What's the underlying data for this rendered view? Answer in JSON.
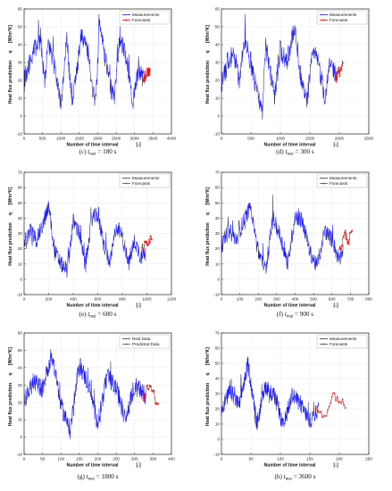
{
  "colors": {
    "measurements": "#1a1aff",
    "forecasts": "#ee1111",
    "frame": "#000000",
    "grid": "#e6e6e6"
  },
  "chart_data": [
    {
      "type": "line",
      "caption": "(c) t_mai = 180 s",
      "caption_parts": {
        "letter": "(c)",
        "sub": "mai",
        "value": "= 180 s"
      },
      "xlabel": "Number of time interval",
      "xunit": "[-]",
      "ylabel": "Heat flux prediction",
      "ysymbol": "q",
      "yunit": "[W/m²K]",
      "xlim": [
        0,
        4000
      ],
      "xticks": [
        "0",
        "500",
        "1000",
        "1500",
        "2000",
        "2500",
        "3000",
        "3500",
        "4000"
      ],
      "ylim": [
        -10,
        60
      ],
      "yticks": [
        "-10",
        "0",
        "10",
        "20",
        "30",
        "40",
        "50",
        "60"
      ],
      "legend": [
        "Measurements",
        "Forecasts"
      ],
      "legend_position": "top-right",
      "meas_end": 3270,
      "fc_start": 3220,
      "fc_end": 3420,
      "series": [
        {
          "name": "Measurements",
          "points": [
            [
              0,
              20
            ],
            [
              150,
              30
            ],
            [
              300,
              38
            ],
            [
              450,
              45
            ],
            [
              550,
              18
            ],
            [
              650,
              42
            ],
            [
              800,
              30
            ],
            [
              950,
              12
            ],
            [
              1000,
              5
            ],
            [
              1150,
              45
            ],
            [
              1300,
              8
            ],
            [
              1350,
              12
            ],
            [
              1550,
              45
            ],
            [
              1750,
              35
            ],
            [
              1850,
              15
            ],
            [
              1950,
              12
            ],
            [
              2050,
              52
            ],
            [
              2150,
              38
            ],
            [
              2350,
              15
            ],
            [
              2450,
              10
            ],
            [
              2600,
              45
            ],
            [
              2800,
              30
            ],
            [
              2950,
              8
            ],
            [
              3100,
              25
            ],
            [
              3270,
              20
            ]
          ]
        },
        {
          "name": "Forecasts",
          "points": [
            [
              3220,
              20
            ],
            [
              3320,
              24
            ],
            [
              3420,
              26
            ]
          ]
        }
      ]
    },
    {
      "type": "line",
      "caption": "(d) t_mai = 300 s",
      "caption_parts": {
        "letter": "(d)",
        "sub": "mai",
        "value": "= 300 s"
      },
      "xlabel": "Number of time interval",
      "xunit": "[-]",
      "ylabel": "Heat flux prediction",
      "ysymbol": "q",
      "yunit": "[W/m²K]",
      "xlim": [
        0,
        2500
      ],
      "xticks": [
        "0",
        "500",
        "1000",
        "1500",
        "2000",
        "2500"
      ],
      "ylim": [
        -10,
        60
      ],
      "yticks": [
        "-10",
        "0",
        "10",
        "20",
        "30",
        "40",
        "50",
        "60"
      ],
      "legend": [
        "Measurements",
        "Forecasts"
      ],
      "legend_position": "top-right",
      "meas_end": 1960,
      "fc_start": 1930,
      "fc_end": 2060,
      "series": [
        {
          "name": "Measurements",
          "points": [
            [
              0,
              18
            ],
            [
              100,
              28
            ],
            [
              200,
              36
            ],
            [
              300,
              20
            ],
            [
              400,
              45
            ],
            [
              500,
              28
            ],
            [
              650,
              8
            ],
            [
              700,
              3
            ],
            [
              750,
              40
            ],
            [
              900,
              10
            ],
            [
              1000,
              38
            ],
            [
              1100,
              30
            ],
            [
              1250,
              50
            ],
            [
              1350,
              20
            ],
            [
              1450,
              8
            ],
            [
              1550,
              35
            ],
            [
              1650,
              30
            ],
            [
              1750,
              10
            ],
            [
              1850,
              30
            ],
            [
              1960,
              22
            ]
          ]
        },
        {
          "name": "Forecasts",
          "points": [
            [
              1930,
              21
            ],
            [
              2000,
              25
            ],
            [
              2060,
              28
            ]
          ]
        }
      ]
    },
    {
      "type": "line",
      "caption": "(e) t_mai = 600 s",
      "caption_parts": {
        "letter": "(e)",
        "sub": "mai",
        "value": "= 600 s"
      },
      "xlabel": "Number of time interval",
      "xunit": "[-]",
      "ylabel": "Heat flux prediction",
      "ysymbol": "q",
      "yunit": "[W/m²K]",
      "xlim": [
        0,
        1200
      ],
      "xticks": [
        "0",
        "200",
        "400",
        "600",
        "800",
        "1000",
        "1200"
      ],
      "ylim": [
        -10,
        70
      ],
      "yticks": [
        "-10",
        "0",
        "10",
        "20",
        "30",
        "40",
        "50",
        "60",
        "70"
      ],
      "legend": [
        "Measurements",
        "Forecasts"
      ],
      "legend_position": "top-right",
      "meas_end": 990,
      "fc_start": 960,
      "fc_end": 1040,
      "series": [
        {
          "name": "Measurements",
          "points": [
            [
              0,
              22
            ],
            [
              50,
              32
            ],
            [
              100,
              26
            ],
            [
              150,
              35
            ],
            [
              200,
              48
            ],
            [
              250,
              18
            ],
            [
              300,
              10
            ],
            [
              350,
              6
            ],
            [
              400,
              38
            ],
            [
              450,
              30
            ],
            [
              500,
              8
            ],
            [
              550,
              40
            ],
            [
              600,
              42
            ],
            [
              650,
              22
            ],
            [
              700,
              10
            ],
            [
              750,
              35
            ],
            [
              800,
              28
            ],
            [
              850,
              10
            ],
            [
              900,
              25
            ],
            [
              950,
              15
            ],
            [
              990,
              20
            ]
          ]
        },
        {
          "name": "Forecasts",
          "points": [
            [
              960,
              20
            ],
            [
              1000,
              24
            ],
            [
              1040,
              28
            ]
          ]
        }
      ]
    },
    {
      "type": "line",
      "caption": "(f) t_mai = 900 s",
      "caption_parts": {
        "letter": "(f)",
        "sub": "mai",
        "value": "= 900 s"
      },
      "xlabel": "Number of time interval",
      "xunit": "[-]",
      "ylabel": "Heat flux prediction",
      "ysymbol": "q",
      "yunit": "[W/m²K]",
      "xlim": [
        0,
        800
      ],
      "xticks": [
        "0",
        "100",
        "200",
        "300",
        "400",
        "500",
        "600",
        "700",
        "800"
      ],
      "ylim": [
        -10,
        70
      ],
      "yticks": [
        "-10",
        "0",
        "10",
        "20",
        "30",
        "40",
        "50",
        "60",
        "70"
      ],
      "legend": [
        "Measurements",
        "Forecasts"
      ],
      "legend_position": "top-right",
      "meas_end": 660,
      "fc_start": 640,
      "fc_end": 710,
      "series": [
        {
          "name": "Measurements",
          "points": [
            [
              0,
              22
            ],
            [
              40,
              32
            ],
            [
              80,
              26
            ],
            [
              120,
              38
            ],
            [
              160,
              48
            ],
            [
              200,
              18
            ],
            [
              240,
              6
            ],
            [
              280,
              40
            ],
            [
              320,
              28
            ],
            [
              360,
              10
            ],
            [
              400,
              42
            ],
            [
              440,
              38
            ],
            [
              480,
              18
            ],
            [
              520,
              8
            ],
            [
              560,
              32
            ],
            [
              600,
              26
            ],
            [
              640,
              12
            ],
            [
              660,
              18
            ]
          ]
        },
        {
          "name": "Forecasts",
          "points": [
            [
              640,
              18
            ],
            [
              670,
              30
            ],
            [
              690,
              25
            ],
            [
              710,
              32
            ]
          ]
        }
      ]
    },
    {
      "type": "line",
      "caption": "(g) t_mai = 1800 s",
      "caption_parts": {
        "letter": "(g)",
        "sub": "mai",
        "value": "= 1800 s"
      },
      "xlabel": "Number of time interval",
      "xunit": "[-]",
      "ylabel": "Heat flux prediction",
      "ysymbol": "q",
      "yunit": "[W/m²K]",
      "xlim": [
        0,
        400
      ],
      "xticks": [
        "0",
        "50",
        "100",
        "150",
        "200",
        "250",
        "300",
        "350",
        "400"
      ],
      "ylim": [
        -10,
        60
      ],
      "yticks": [
        "-10",
        "0",
        "10",
        "20",
        "30",
        "40",
        "50",
        "60"
      ],
      "legend": [
        "Real Data",
        "Predicted Data"
      ],
      "legend_position": "top-right",
      "meas_end": 330,
      "fc_start": 320,
      "fc_end": 365,
      "series": [
        {
          "name": "Real Data",
          "points": [
            [
              0,
              20
            ],
            [
              25,
              32
            ],
            [
              50,
              28
            ],
            [
              75,
              48
            ],
            [
              100,
              18
            ],
            [
              125,
              4
            ],
            [
              150,
              42
            ],
            [
              175,
              30
            ],
            [
              200,
              8
            ],
            [
              225,
              35
            ],
            [
              250,
              28
            ],
            [
              275,
              10
            ],
            [
              300,
              30
            ],
            [
              330,
              24
            ]
          ]
        },
        {
          "name": "Predicted Data",
          "points": [
            [
              320,
              22
            ],
            [
              340,
              30
            ],
            [
              365,
              18
            ]
          ]
        }
      ]
    },
    {
      "type": "line",
      "caption": "(h) t_mai = 3600 s",
      "caption_parts": {
        "letter": "(h)",
        "sub": "mai",
        "value": "= 3600 s"
      },
      "xlabel": "Number of time interval",
      "xunit": "[-]",
      "ylabel": "Heat flux prediction",
      "ysymbol": "q",
      "yunit": "[W/m²K]",
      "xlim": [
        0,
        250
      ],
      "xticks": [
        "0",
        "50",
        "100",
        "150",
        "200",
        "250"
      ],
      "ylim": [
        -10,
        70
      ],
      "yticks": [
        "-10",
        "0",
        "10",
        "20",
        "30",
        "40",
        "50",
        "60",
        "70"
      ],
      "legend": [
        "Measurements",
        "Forecasts"
      ],
      "legend_position": "top-right",
      "meas_end": 165,
      "fc_start": 160,
      "fc_end": 210,
      "series": [
        {
          "name": "Measurements",
          "points": [
            [
              0,
              20
            ],
            [
              15,
              32
            ],
            [
              30,
              22
            ],
            [
              45,
              50
            ],
            [
              60,
              10
            ],
            [
              75,
              35
            ],
            [
              90,
              28
            ],
            [
              105,
              8
            ],
            [
              120,
              30
            ],
            [
              135,
              22
            ],
            [
              150,
              12
            ],
            [
              165,
              20
            ]
          ]
        },
        {
          "name": "Forecasts",
          "points": [
            [
              160,
              20
            ],
            [
              175,
              15
            ],
            [
              190,
              30
            ],
            [
              210,
              22
            ]
          ]
        }
      ]
    }
  ]
}
